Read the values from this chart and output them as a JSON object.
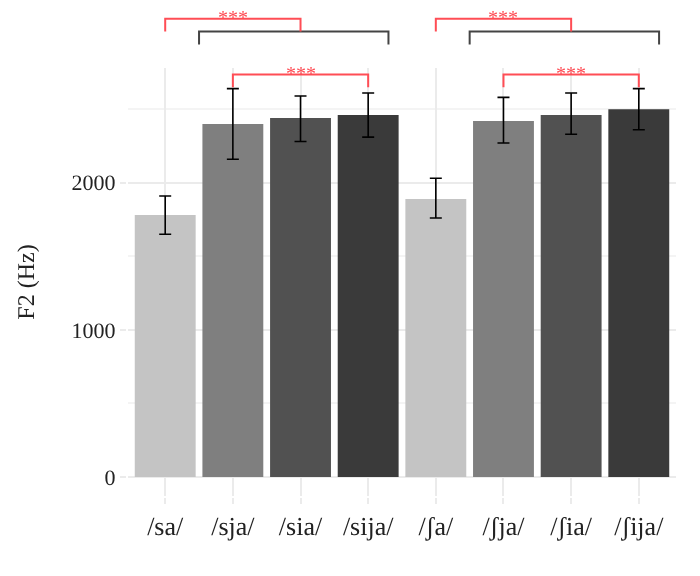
{
  "chart_data": {
    "type": "bar",
    "ylabel": "F2 (Hz)",
    "categories": [
      "/sa/",
      "/sja/",
      "/sia/",
      "/sija/",
      "/ʃa/",
      "/ʃja/",
      "/ʃia/",
      "/ʃija/"
    ],
    "values": [
      1780,
      2400,
      2440,
      2460,
      1890,
      2420,
      2460,
      2500
    ],
    "colors": [
      "#c4c4c4",
      "#7f7f7f",
      "#515151",
      "#3a3a3a",
      "#c4c4c4",
      "#7f7f7f",
      "#515151",
      "#3a3a3a"
    ],
    "errors": [
      [
        1650,
        1910
      ],
      [
        2160,
        2640
      ],
      [
        2280,
        2590
      ],
      [
        2310,
        2610
      ],
      [
        1760,
        2030
      ],
      [
        2270,
        2580
      ],
      [
        2330,
        2610
      ],
      [
        2360,
        2640
      ]
    ],
    "ylim": [
      -130,
      2780
    ],
    "yticks": [
      0,
      1000,
      2000
    ],
    "grid": true,
    "annotations": [
      "***",
      "***",
      "***",
      "***"
    ]
  }
}
